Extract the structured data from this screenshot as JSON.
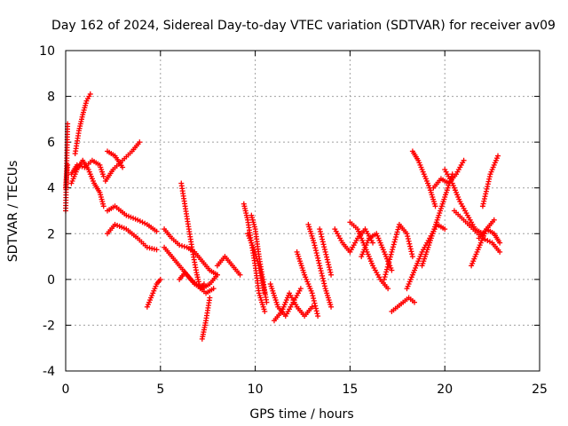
{
  "chart_data": {
    "type": "scatter",
    "title": "Day 162 of 2024, Sidereal Day-to-day VTEC variation (SDTVAR) for receiver av09",
    "xlabel": "GPS time / hours",
    "ylabel": "SDTVAR / TECUs",
    "xlim": [
      0,
      25
    ],
    "ylim": [
      -4,
      10
    ],
    "xticks": [
      "0",
      "5",
      "10",
      "15",
      "20",
      "25"
    ],
    "yticks": [
      "-4",
      "-2",
      "0",
      "2",
      "4",
      "6",
      "8",
      "10"
    ],
    "grid": true,
    "marker": "+",
    "color": "#ff0000",
    "segments": [
      {
        "x": [
          0.0,
          0.1
        ],
        "y": [
          4.0,
          5.0
        ]
      },
      {
        "x": [
          0.0,
          0.1
        ],
        "y": [
          3.0,
          6.8
        ]
      },
      {
        "x": [
          0.5,
          0.7,
          0.9,
          1.1,
          1.3
        ],
        "y": [
          5.5,
          6.5,
          7.2,
          7.8,
          8.1
        ]
      },
      {
        "x": [
          0.3,
          0.6,
          0.9,
          1.2,
          1.5,
          1.8,
          2.0
        ],
        "y": [
          4.2,
          4.8,
          5.2,
          4.8,
          4.2,
          3.8,
          3.2
        ]
      },
      {
        "x": [
          0.3,
          0.6,
          1.0,
          1.4,
          1.8,
          2.0
        ],
        "y": [
          4.6,
          5.0,
          4.9,
          5.2,
          5.0,
          4.5
        ]
      },
      {
        "x": [
          2.1,
          2.5,
          3.0,
          3.5,
          3.9
        ],
        "y": [
          4.3,
          4.8,
          5.2,
          5.6,
          6.0
        ]
      },
      {
        "x": [
          2.2,
          2.6,
          3.0
        ],
        "y": [
          5.6,
          5.4,
          4.9
        ]
      },
      {
        "x": [
          2.2,
          2.6,
          3.2,
          3.8,
          4.3,
          4.8
        ],
        "y": [
          3.0,
          3.2,
          2.8,
          2.6,
          2.4,
          2.1
        ]
      },
      {
        "x": [
          2.2,
          2.6,
          3.2,
          3.8,
          4.3,
          4.8
        ],
        "y": [
          2.0,
          2.4,
          2.2,
          1.8,
          1.4,
          1.3
        ]
      },
      {
        "x": [
          4.3,
          4.6,
          4.8,
          5.0
        ],
        "y": [
          -1.2,
          -0.6,
          -0.2,
          0.0
        ]
      },
      {
        "x": [
          5.2,
          5.6,
          6.0,
          6.4,
          6.8,
          7.2,
          7.6,
          8.0
        ],
        "y": [
          2.2,
          1.8,
          1.5,
          1.4,
          1.2,
          0.8,
          0.4,
          0.2
        ]
      },
      {
        "x": [
          5.2,
          5.6,
          6.0,
          6.4,
          6.8,
          7.2,
          7.6,
          8.0
        ],
        "y": [
          1.4,
          1.0,
          0.6,
          0.2,
          -0.2,
          -0.4,
          -0.2,
          0.2
        ]
      },
      {
        "x": [
          6.0,
          6.3,
          6.6,
          7.0,
          7.4,
          7.8
        ],
        "y": [
          0.0,
          0.3,
          0.0,
          -0.3,
          -0.6,
          -0.4
        ]
      },
      {
        "x": [
          6.1,
          6.3,
          6.5,
          6.7,
          6.9,
          7.1,
          7.3
        ],
        "y": [
          4.2,
          3.2,
          2.2,
          1.2,
          0.3,
          -0.4,
          -0.2
        ]
      },
      {
        "x": [
          7.2,
          7.4,
          7.6
        ],
        "y": [
          -2.6,
          -1.8,
          -0.8
        ]
      },
      {
        "x": [
          8.0,
          8.4,
          8.8,
          9.2
        ],
        "y": [
          0.6,
          1.0,
          0.6,
          0.2
        ]
      },
      {
        "x": [
          9.4,
          9.6,
          9.8,
          10.0,
          10.2,
          10.5
        ],
        "y": [
          3.3,
          2.6,
          1.6,
          0.6,
          -0.6,
          -1.4
        ]
      },
      {
        "x": [
          9.6,
          9.9,
          10.2,
          10.5
        ],
        "y": [
          2.0,
          1.4,
          0.6,
          -0.6
        ]
      },
      {
        "x": [
          9.8,
          10.0,
          10.2,
          10.4,
          10.6
        ],
        "y": [
          2.8,
          2.2,
          1.0,
          0.0,
          -1.0
        ]
      },
      {
        "x": [
          10.8,
          11.2,
          11.6,
          12.0,
          12.4
        ],
        "y": [
          -0.2,
          -1.2,
          -1.6,
          -1.0,
          -0.4
        ]
      },
      {
        "x": [
          11.0,
          11.4,
          11.8,
          12.2,
          12.6,
          13.0
        ],
        "y": [
          -1.8,
          -1.4,
          -0.6,
          -1.2,
          -1.6,
          -1.2
        ]
      },
      {
        "x": [
          12.2,
          12.6,
          13.0,
          13.3
        ],
        "y": [
          1.2,
          0.2,
          -0.6,
          -1.6
        ]
      },
      {
        "x": [
          12.8,
          13.1,
          13.4,
          13.7,
          14.0
        ],
        "y": [
          2.4,
          1.6,
          0.6,
          -0.4,
          -1.2
        ]
      },
      {
        "x": [
          13.4,
          13.7,
          14.0
        ],
        "y": [
          2.2,
          1.2,
          0.2
        ]
      },
      {
        "x": [
          14.2,
          14.6,
          15.0,
          15.4,
          15.8,
          16.2
        ],
        "y": [
          2.2,
          1.6,
          1.2,
          1.8,
          2.2,
          1.6
        ]
      },
      {
        "x": [
          15.0,
          15.4,
          15.8,
          16.2,
          16.6,
          17.0
        ],
        "y": [
          2.5,
          2.2,
          1.4,
          0.6,
          0.0,
          -0.4
        ]
      },
      {
        "x": [
          15.6,
          16.0,
          16.4,
          16.8,
          17.2
        ],
        "y": [
          1.0,
          1.8,
          2.0,
          1.2,
          0.4
        ]
      },
      {
        "x": [
          16.8,
          17.2,
          17.6,
          18.0,
          18.3
        ],
        "y": [
          0.0,
          1.2,
          2.4,
          2.0,
          1.0
        ]
      },
      {
        "x": [
          17.2,
          17.5,
          17.8,
          18.1,
          18.4
        ],
        "y": [
          -1.4,
          -1.2,
          -1.0,
          -0.8,
          -1.0
        ]
      },
      {
        "x": [
          18.0,
          18.4,
          18.8,
          19.2,
          19.6,
          20.0
        ],
        "y": [
          -0.4,
          0.4,
          1.2,
          1.8,
          2.4,
          2.2
        ]
      },
      {
        "x": [
          18.3,
          18.6,
          18.9,
          19.2,
          19.5
        ],
        "y": [
          5.6,
          5.2,
          4.6,
          4.0,
          3.2
        ]
      },
      {
        "x": [
          18.8,
          19.2,
          19.6,
          20.0,
          20.4
        ],
        "y": [
          0.6,
          1.6,
          2.6,
          3.6,
          4.6
        ]
      },
      {
        "x": [
          19.4,
          19.8,
          20.2,
          20.6,
          21.0
        ],
        "y": [
          4.0,
          4.4,
          4.2,
          4.6,
          5.2
        ]
      },
      {
        "x": [
          20.0,
          20.4,
          20.8,
          21.2,
          21.6,
          22.0
        ],
        "y": [
          4.8,
          4.2,
          3.4,
          2.8,
          2.2,
          2.0
        ]
      },
      {
        "x": [
          20.5,
          21.0,
          21.5,
          22.0,
          22.5,
          22.9
        ],
        "y": [
          3.0,
          2.6,
          2.2,
          1.8,
          1.6,
          1.2
        ]
      },
      {
        "x": [
          21.4,
          21.8,
          22.2,
          22.6
        ],
        "y": [
          0.6,
          1.4,
          2.2,
          2.6
        ]
      },
      {
        "x": [
          22.0,
          22.4,
          22.8
        ],
        "y": [
          3.2,
          4.6,
          5.4
        ]
      },
      {
        "x": [
          21.8,
          22.2,
          22.6,
          22.9
        ],
        "y": [
          1.8,
          2.2,
          2.0,
          1.6
        ]
      }
    ]
  }
}
